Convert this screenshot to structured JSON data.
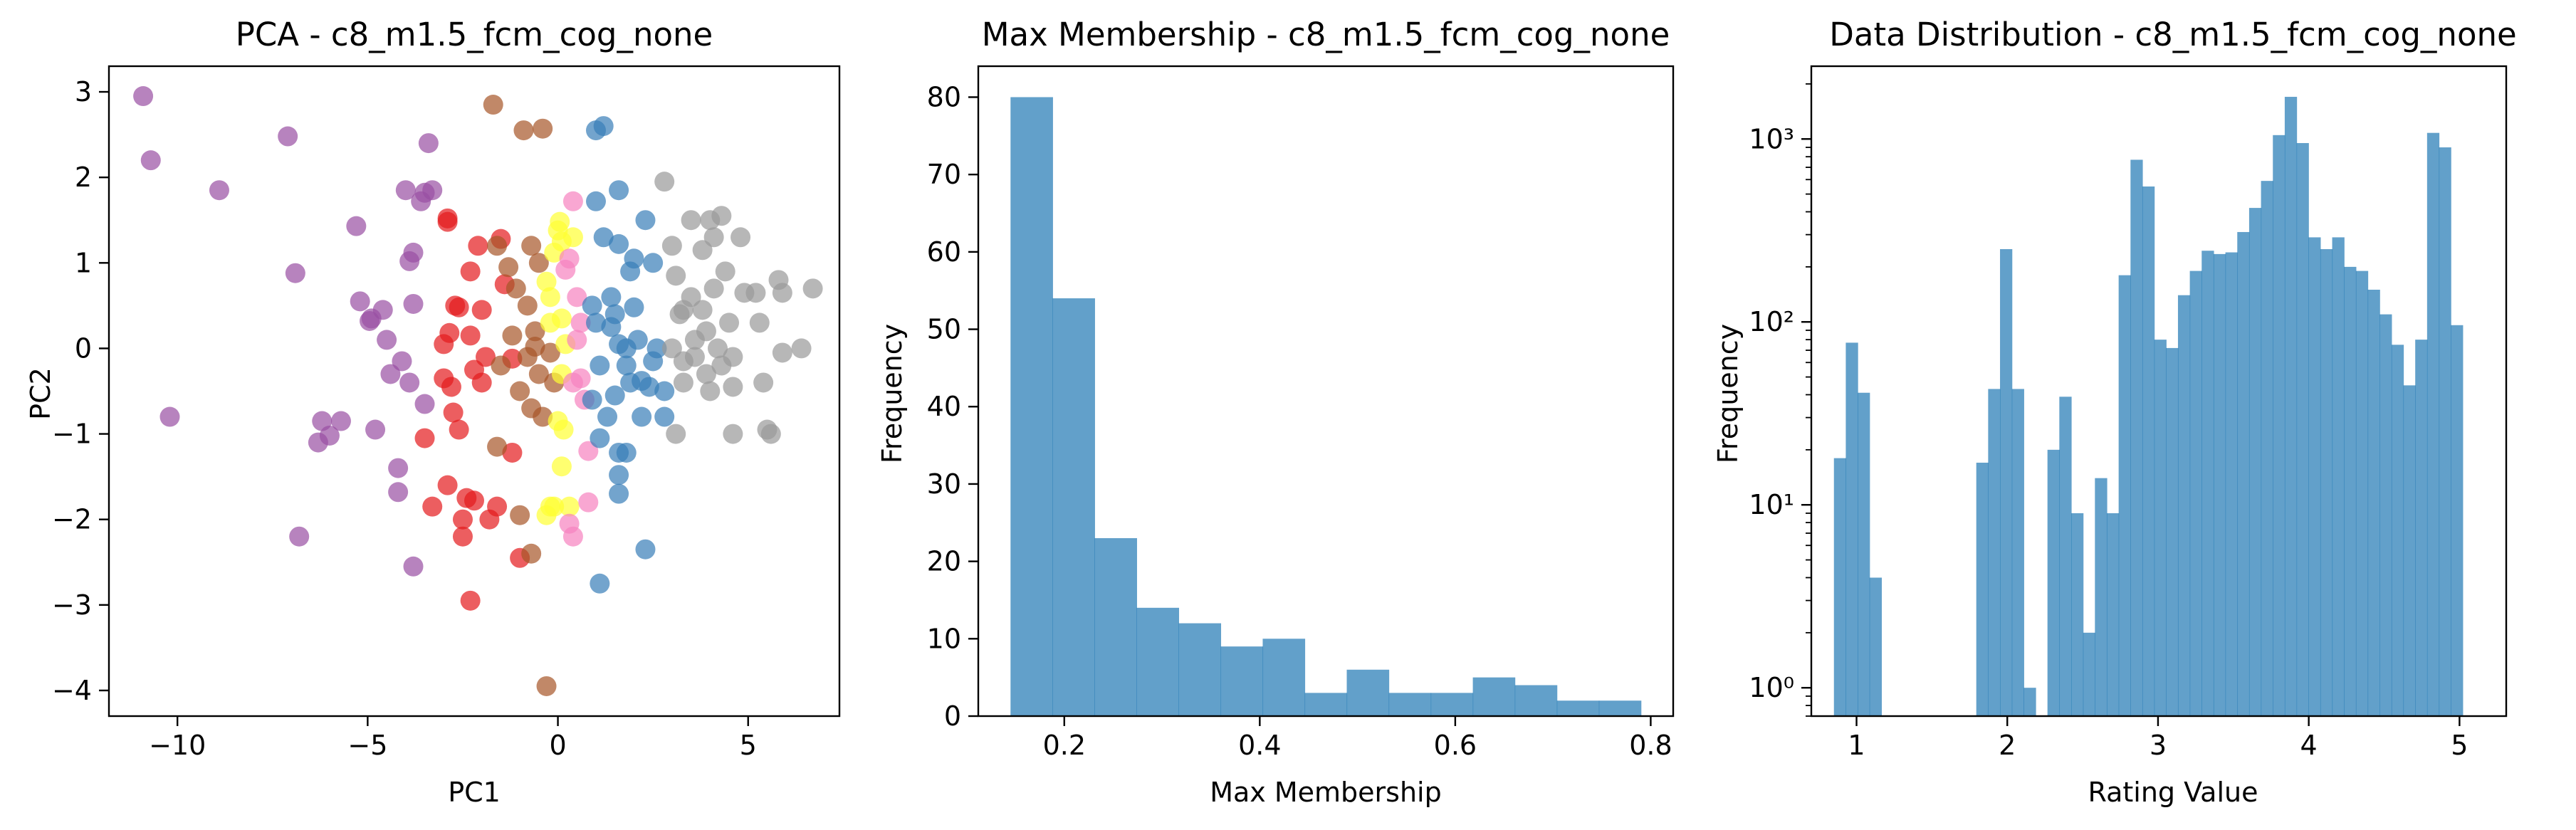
{
  "chart_data": [
    {
      "type": "scatter",
      "title": "PCA - c8_m1.5_fcm_cog_none",
      "xlabel": "PC1",
      "ylabel": "PC2",
      "xlim": [
        -11.8,
        7.4
      ],
      "ylim": [
        -4.3,
        3.3
      ],
      "xticks": [
        -10,
        -5,
        0,
        5
      ],
      "xtick_labels": [
        "−10",
        "−5",
        "0",
        "5"
      ],
      "yticks": [
        -4,
        -3,
        -2,
        -1,
        0,
        1,
        2,
        3
      ],
      "ytick_labels": [
        "−4",
        "−3",
        "−2",
        "−1",
        "0",
        "1",
        "2",
        "3"
      ],
      "grid": false,
      "legend": false,
      "series": [
        {
          "color": "#984ea3",
          "points": [
            [
              -10.9,
              2.95
            ],
            [
              -10.7,
              2.2
            ],
            [
              -10.2,
              -0.8
            ],
            [
              -8.9,
              1.85
            ],
            [
              -7.1,
              2.48
            ],
            [
              -6.9,
              0.88
            ],
            [
              -6.8,
              -2.2
            ],
            [
              -6.3,
              -1.1
            ],
            [
              -6.2,
              -0.85
            ],
            [
              -6.0,
              -1.02
            ],
            [
              -5.7,
              -0.85
            ],
            [
              -5.3,
              1.43
            ],
            [
              -5.2,
              0.55
            ],
            [
              -4.95,
              0.32
            ],
            [
              -4.9,
              0.35
            ],
            [
              -4.8,
              -0.95
            ],
            [
              -4.6,
              0.45
            ],
            [
              -4.5,
              0.1
            ],
            [
              -4.4,
              -0.3
            ],
            [
              -4.2,
              -1.4
            ],
            [
              -4.2,
              -1.68
            ],
            [
              -4.1,
              -0.15
            ],
            [
              -4.0,
              1.85
            ],
            [
              -3.9,
              1.02
            ],
            [
              -3.9,
              -0.4
            ],
            [
              -3.8,
              1.12
            ],
            [
              -3.8,
              0.52
            ],
            [
              -3.8,
              -2.55
            ],
            [
              -3.6,
              1.72
            ],
            [
              -3.5,
              1.82
            ],
            [
              -3.4,
              2.4
            ],
            [
              -3.5,
              -0.65
            ],
            [
              -3.3,
              1.85
            ]
          ]
        },
        {
          "color": "#e41a1c",
          "points": [
            [
              -3.5,
              -1.05
            ],
            [
              -3.3,
              -1.85
            ],
            [
              -3.0,
              0.05
            ],
            [
              -3.0,
              -0.35
            ],
            [
              -2.9,
              1.48
            ],
            [
              -2.9,
              1.52
            ],
            [
              -2.85,
              0.18
            ],
            [
              -2.8,
              -0.45
            ],
            [
              -2.75,
              -0.75
            ],
            [
              -2.9,
              -1.6
            ],
            [
              -2.7,
              0.5
            ],
            [
              -2.6,
              0.48
            ],
            [
              -2.6,
              -0.95
            ],
            [
              -2.5,
              -2.2
            ],
            [
              -2.5,
              -2.0
            ],
            [
              -2.4,
              -1.75
            ],
            [
              -2.3,
              0.9
            ],
            [
              -2.3,
              0.15
            ],
            [
              -2.2,
              -0.25
            ],
            [
              -2.2,
              -1.78
            ],
            [
              -2.3,
              -2.95
            ],
            [
              -2.1,
              1.2
            ],
            [
              -2.0,
              0.45
            ],
            [
              -2.0,
              -0.4
            ],
            [
              -1.9,
              -0.1
            ],
            [
              -1.8,
              -2.0
            ],
            [
              -1.6,
              -1.85
            ],
            [
              -1.5,
              1.28
            ],
            [
              -1.4,
              0.75
            ],
            [
              -1.2,
              -1.22
            ],
            [
              -1.2,
              -0.12
            ],
            [
              -1.0,
              -2.45
            ]
          ]
        },
        {
          "color": "#a65628",
          "points": [
            [
              -1.7,
              2.85
            ],
            [
              -1.6,
              -1.15
            ],
            [
              -1.6,
              1.2
            ],
            [
              -1.5,
              -0.2
            ],
            [
              -1.3,
              0.95
            ],
            [
              -1.2,
              0.15
            ],
            [
              -1.1,
              0.7
            ],
            [
              -1.0,
              -0.5
            ],
            [
              -1.0,
              -1.95
            ],
            [
              -0.9,
              2.55
            ],
            [
              -0.8,
              0.5
            ],
            [
              -0.8,
              -0.1
            ],
            [
              -0.7,
              -0.7
            ],
            [
              -0.7,
              -2.4
            ],
            [
              -0.6,
              0.2
            ],
            [
              -0.5,
              -0.3
            ],
            [
              -0.5,
              1.0
            ],
            [
              -0.4,
              2.57
            ],
            [
              -0.4,
              -0.8
            ],
            [
              -0.3,
              -3.95
            ],
            [
              -0.6,
              0.02
            ],
            [
              -0.2,
              -0.05
            ],
            [
              -0.7,
              1.2
            ],
            [
              -0.1,
              -0.4
            ]
          ]
        },
        {
          "color": "#ffff33",
          "points": [
            [
              -0.3,
              0.78
            ],
            [
              -0.2,
              0.6
            ],
            [
              -0.1,
              1.12
            ],
            [
              0.0,
              1.38
            ],
            [
              0.05,
              1.48
            ],
            [
              0.1,
              1.25
            ],
            [
              0.1,
              0.35
            ],
            [
              0.1,
              -0.3
            ],
            [
              0.0,
              -0.85
            ],
            [
              0.1,
              -1.38
            ],
            [
              0.15,
              -0.95
            ],
            [
              -0.1,
              -1.85
            ],
            [
              -0.2,
              -1.85
            ],
            [
              -0.3,
              -1.95
            ],
            [
              0.3,
              -1.85
            ],
            [
              0.4,
              1.3
            ],
            [
              0.2,
              0.05
            ],
            [
              -0.2,
              0.3
            ]
          ]
        },
        {
          "color": "#f781bf",
          "points": [
            [
              0.2,
              0.92
            ],
            [
              0.3,
              1.05
            ],
            [
              0.4,
              1.72
            ],
            [
              0.5,
              0.6
            ],
            [
              0.6,
              0.3
            ],
            [
              0.6,
              -0.35
            ],
            [
              0.7,
              -0.6
            ],
            [
              0.8,
              -1.2
            ],
            [
              0.3,
              -2.05
            ],
            [
              0.4,
              -2.2
            ],
            [
              0.8,
              -1.8
            ],
            [
              0.4,
              -0.4
            ],
            [
              0.5,
              0.1
            ]
          ]
        },
        {
          "color": "#377eb8",
          "points": [
            [
              1.0,
              2.55
            ],
            [
              1.2,
              2.6
            ],
            [
              1.0,
              1.72
            ],
            [
              1.0,
              0.3
            ],
            [
              1.1,
              -0.2
            ],
            [
              0.9,
              -0.6
            ],
            [
              1.1,
              -1.05
            ],
            [
              1.1,
              -2.75
            ],
            [
              1.3,
              -0.8
            ],
            [
              1.4,
              0.6
            ],
            [
              1.4,
              0.25
            ],
            [
              1.5,
              0.4
            ],
            [
              1.6,
              1.85
            ],
            [
              1.6,
              1.22
            ],
            [
              1.6,
              0.05
            ],
            [
              1.6,
              -1.22
            ],
            [
              1.6,
              -1.48
            ],
            [
              1.6,
              -1.7
            ],
            [
              1.8,
              -1.22
            ],
            [
              1.8,
              0.0
            ],
            [
              1.8,
              -0.2
            ],
            [
              1.9,
              0.9
            ],
            [
              1.9,
              -0.4
            ],
            [
              2.0,
              1.05
            ],
            [
              2.0,
              0.48
            ],
            [
              2.1,
              0.1
            ],
            [
              2.2,
              -0.38
            ],
            [
              2.2,
              -0.8
            ],
            [
              2.3,
              -2.35
            ],
            [
              2.5,
              1.0
            ],
            [
              2.5,
              -0.15
            ],
            [
              2.3,
              1.5
            ],
            [
              2.4,
              -0.45
            ],
            [
              2.6,
              0.0
            ],
            [
              2.8,
              -0.5
            ],
            [
              2.8,
              -0.8
            ],
            [
              1.2,
              1.3
            ],
            [
              1.5,
              -0.55
            ],
            [
              0.9,
              0.5
            ]
          ]
        },
        {
          "color": "#999999",
          "points": [
            [
              2.8,
              1.95
            ],
            [
              3.0,
              1.2
            ],
            [
              3.1,
              0.85
            ],
            [
              3.2,
              0.4
            ],
            [
              3.0,
              0.0
            ],
            [
              3.1,
              -1.0
            ],
            [
              3.3,
              0.45
            ],
            [
              3.3,
              -0.15
            ],
            [
              3.3,
              -0.4
            ],
            [
              3.5,
              1.5
            ],
            [
              3.5,
              0.6
            ],
            [
              3.6,
              0.1
            ],
            [
              3.8,
              1.15
            ],
            [
              3.8,
              0.45
            ],
            [
              3.9,
              0.2
            ],
            [
              3.9,
              -0.3
            ],
            [
              4.0,
              1.5
            ],
            [
              4.1,
              1.3
            ],
            [
              4.1,
              0.7
            ],
            [
              4.2,
              0.0
            ],
            [
              4.3,
              -0.2
            ],
            [
              4.3,
              1.55
            ],
            [
              4.4,
              0.9
            ],
            [
              4.5,
              0.3
            ],
            [
              4.6,
              -0.1
            ],
            [
              4.6,
              -0.45
            ],
            [
              4.6,
              -1.0
            ],
            [
              4.8,
              1.3
            ],
            [
              4.9,
              0.65
            ],
            [
              5.2,
              0.65
            ],
            [
              5.3,
              0.3
            ],
            [
              5.4,
              -0.4
            ],
            [
              5.5,
              -0.95
            ],
            [
              5.6,
              -1.0
            ],
            [
              5.8,
              0.8
            ],
            [
              5.9,
              0.65
            ],
            [
              5.9,
              -0.05
            ],
            [
              6.4,
              0.0
            ],
            [
              6.7,
              0.7
            ],
            [
              4.0,
              -0.5
            ],
            [
              3.6,
              -0.1
            ]
          ]
        }
      ]
    },
    {
      "type": "bar",
      "title": "Max Membership - c8_m1.5_fcm_cog_none",
      "xlabel": "Max Membership",
      "ylabel": "Frequency",
      "xlim": [
        0.112,
        0.823
      ],
      "ylim": [
        0,
        84
      ],
      "xticks": [
        0.2,
        0.4,
        0.6,
        0.8
      ],
      "xtick_labels": [
        "0.2",
        "0.4",
        "0.6",
        "0.8"
      ],
      "yticks": [
        0,
        10,
        20,
        30,
        40,
        50,
        60,
        70,
        80
      ],
      "ytick_labels": [
        "0",
        "10",
        "20",
        "30",
        "40",
        "50",
        "60",
        "70",
        "80"
      ],
      "bin_edges": [
        0.145,
        0.188,
        0.231,
        0.274,
        0.317,
        0.36,
        0.403,
        0.446,
        0.489,
        0.532,
        0.575,
        0.618,
        0.661,
        0.704,
        0.747,
        0.79
      ],
      "values": [
        80,
        54,
        23,
        14,
        12,
        9,
        10,
        3,
        6,
        3,
        3,
        5,
        4,
        2,
        2
      ],
      "color": "#1f77b4",
      "alpha": 0.7,
      "grid": false,
      "legend": false
    },
    {
      "type": "bar",
      "title": "Data Distribution - c8_m1.5_fcm_cog_none",
      "xlabel": "Rating Value",
      "ylabel": "Frequency",
      "yscale": "log",
      "xlim": [
        0.7,
        5.31
      ],
      "ylim": [
        0.7,
        2500
      ],
      "xticks": [
        1,
        2,
        3,
        4,
        5
      ],
      "xtick_labels": [
        "1",
        "2",
        "3",
        "4",
        "5"
      ],
      "yticks": [
        1,
        10,
        100,
        1000
      ],
      "ytick_labels": [
        "10⁰",
        "10¹",
        "10²",
        "10³"
      ],
      "bin_start": 0.85,
      "bin_width": 0.0787,
      "values": [
        18,
        77,
        41,
        4,
        0,
        0,
        0,
        0,
        0,
        0,
        0,
        0,
        17,
        43,
        250,
        43,
        1,
        0,
        20,
        39,
        9,
        2,
        14,
        9,
        180,
        770,
        550,
        80,
        72,
        140,
        190,
        245,
        235,
        240,
        310,
        420,
        590,
        1050,
        1700,
        950,
        290,
        250,
        290,
        200,
        190,
        150,
        110,
        75,
        45,
        80,
        1080,
        900,
        96
      ],
      "color": "#1f77b4",
      "alpha": 0.7,
      "grid": false,
      "legend": false
    }
  ]
}
